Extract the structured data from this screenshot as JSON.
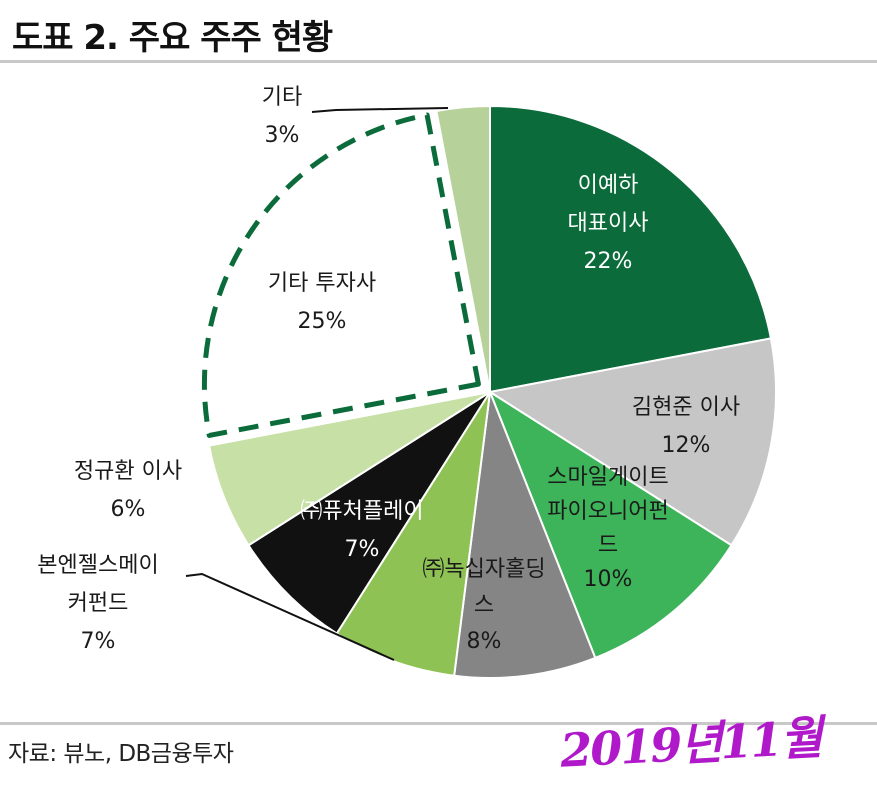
{
  "header": {
    "title": "도표 2. 주요 주주 현황"
  },
  "footer": {
    "source": "자료: 뷰노, DB금융투자",
    "handwritten_note": "2019년11월"
  },
  "chart_data": {
    "type": "pie",
    "title": "도표 2. 주요 주주 현황",
    "unit": "%",
    "slices": [
      {
        "label": "이예하 대표이사",
        "lines": [
          "이예하",
          "대표이사"
        ],
        "value": 22,
        "display": "22%",
        "color": "#0b6b3a",
        "text_color": "#ffffff"
      },
      {
        "label": "김현준 이사",
        "lines": [
          "김현준 이사"
        ],
        "value": 12,
        "display": "12%",
        "color": "#c6c6c6",
        "text_color": "#1a1a1a"
      },
      {
        "label": "스마일게이트 파이오니어펀드",
        "lines": [
          "스마일게이트",
          "파이오니어펀",
          "드"
        ],
        "value": 10,
        "display": "10%",
        "color": "#3db35a",
        "text_color": "#1a1a1a"
      },
      {
        "label": "㈜녹십자홀딩스",
        "lines": [
          "㈜녹십자홀딩",
          "스"
        ],
        "value": 8,
        "display": "8%",
        "color": "#858585",
        "text_color": "#1a1a1a"
      },
      {
        "label": "본엔젤스메이커펀드",
        "lines": [
          "본엔젤스메이",
          "커펀드"
        ],
        "value": 7,
        "display": "7%",
        "color": "#8fc255",
        "text_color": "#1a1a1a"
      },
      {
        "label": "㈜퓨처플레이",
        "lines": [
          "㈜퓨처플레이"
        ],
        "value": 7,
        "display": "7%",
        "color": "#111111",
        "text_color": "#ffffff"
      },
      {
        "label": "정규환 이사",
        "lines": [
          "정규환 이사"
        ],
        "value": 6,
        "display": "6%",
        "color": "#c6e0a6",
        "text_color": "#1a1a1a"
      },
      {
        "label": "기타 투자사",
        "lines": [
          "기타 투자사"
        ],
        "value": 25,
        "display": "25%",
        "color": "#ffffff",
        "text_color": "#1a1a1a",
        "outline": "dashed",
        "outline_color": "#0b6b3a",
        "exploded": true
      },
      {
        "label": "기타",
        "lines": [
          "기타"
        ],
        "value": 3,
        "display": "3%",
        "color": "#b6d29a",
        "text_color": "#1a1a1a"
      }
    ],
    "start_angle_deg": 0,
    "direction": "clockwise"
  }
}
